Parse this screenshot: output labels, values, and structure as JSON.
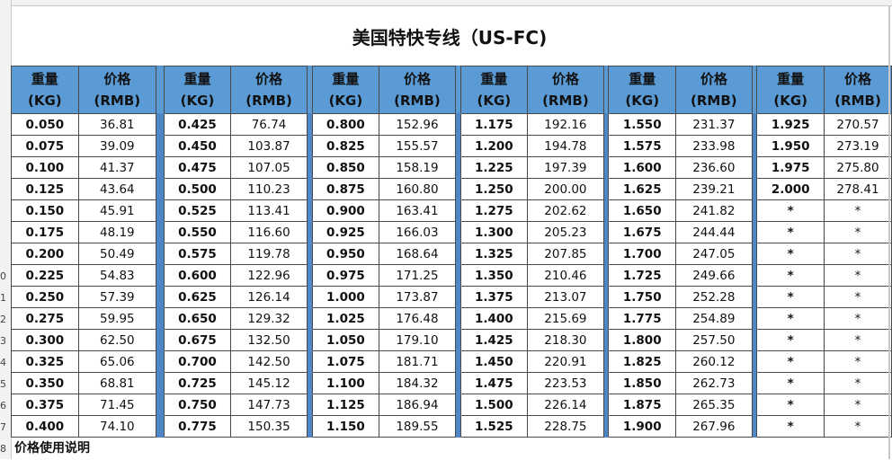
{
  "title": "美国特快专线（US-FC)",
  "header": {
    "weight": "重量\n(KG)",
    "price": "价格\n(RMB)"
  },
  "row_numbers": [
    "0",
    "1",
    "2",
    "3",
    "4",
    "5",
    "6",
    "7",
    "8"
  ],
  "groups": [
    {
      "rows": [
        [
          "0.050",
          "36.81"
        ],
        [
          "0.075",
          "39.09"
        ],
        [
          "0.100",
          "41.37"
        ],
        [
          "0.125",
          "43.64"
        ],
        [
          "0.150",
          "45.91"
        ],
        [
          "0.175",
          "48.19"
        ],
        [
          "0.200",
          "50.49"
        ],
        [
          "0.225",
          "54.83"
        ],
        [
          "0.250",
          "57.39"
        ],
        [
          "0.275",
          "59.95"
        ],
        [
          "0.300",
          "62.50"
        ],
        [
          "0.325",
          "65.06"
        ],
        [
          "0.350",
          "68.81"
        ],
        [
          "0.375",
          "71.45"
        ],
        [
          "0.400",
          "74.10"
        ]
      ]
    },
    {
      "rows": [
        [
          "0.425",
          "76.74"
        ],
        [
          "0.450",
          "103.87"
        ],
        [
          "0.475",
          "107.05"
        ],
        [
          "0.500",
          "110.23"
        ],
        [
          "0.525",
          "113.41"
        ],
        [
          "0.550",
          "116.60"
        ],
        [
          "0.575",
          "119.78"
        ],
        [
          "0.600",
          "122.96"
        ],
        [
          "0.625",
          "126.14"
        ],
        [
          "0.650",
          "129.32"
        ],
        [
          "0.675",
          "132.50"
        ],
        [
          "0.700",
          "142.50"
        ],
        [
          "0.725",
          "145.12"
        ],
        [
          "0.750",
          "147.73"
        ],
        [
          "0.775",
          "150.35"
        ]
      ]
    },
    {
      "rows": [
        [
          "0.800",
          "152.96"
        ],
        [
          "0.825",
          "155.57"
        ],
        [
          "0.850",
          "158.19"
        ],
        [
          "0.875",
          "160.80"
        ],
        [
          "0.900",
          "163.41"
        ],
        [
          "0.925",
          "166.03"
        ],
        [
          "0.950",
          "168.64"
        ],
        [
          "0.975",
          "171.25"
        ],
        [
          "1.000",
          "173.87"
        ],
        [
          "1.025",
          "176.48"
        ],
        [
          "1.050",
          "179.10"
        ],
        [
          "1.075",
          "181.71"
        ],
        [
          "1.100",
          "184.32"
        ],
        [
          "1.125",
          "186.94"
        ],
        [
          "1.150",
          "189.55"
        ]
      ]
    },
    {
      "rows": [
        [
          "1.175",
          "192.16"
        ],
        [
          "1.200",
          "194.78"
        ],
        [
          "1.225",
          "197.39"
        ],
        [
          "1.250",
          "200.00"
        ],
        [
          "1.275",
          "202.62"
        ],
        [
          "1.300",
          "205.23"
        ],
        [
          "1.325",
          "207.85"
        ],
        [
          "1.350",
          "210.46"
        ],
        [
          "1.375",
          "213.07"
        ],
        [
          "1.400",
          "215.69"
        ],
        [
          "1.425",
          "218.30"
        ],
        [
          "1.450",
          "220.91"
        ],
        [
          "1.475",
          "223.53"
        ],
        [
          "1.500",
          "226.14"
        ],
        [
          "1.525",
          "228.75"
        ]
      ]
    },
    {
      "rows": [
        [
          "1.550",
          "231.37"
        ],
        [
          "1.575",
          "233.98"
        ],
        [
          "1.600",
          "236.60"
        ],
        [
          "1.625",
          "239.21"
        ],
        [
          "1.650",
          "241.82"
        ],
        [
          "1.675",
          "244.44"
        ],
        [
          "1.700",
          "247.05"
        ],
        [
          "1.725",
          "249.66"
        ],
        [
          "1.750",
          "252.28"
        ],
        [
          "1.775",
          "254.89"
        ],
        [
          "1.800",
          "257.50"
        ],
        [
          "1.825",
          "260.12"
        ],
        [
          "1.850",
          "262.73"
        ],
        [
          "1.875",
          "265.35"
        ],
        [
          "1.900",
          "267.96"
        ]
      ]
    },
    {
      "rows": [
        [
          "1.925",
          "270.57"
        ],
        [
          "1.950",
          "273.19"
        ],
        [
          "1.975",
          "275.80"
        ],
        [
          "2.000",
          "278.41"
        ],
        [
          "*",
          "*"
        ],
        [
          "*",
          "*"
        ],
        [
          "*",
          "*"
        ],
        [
          "*",
          "*"
        ],
        [
          "*",
          "*"
        ],
        [
          "*",
          "*"
        ],
        [
          "*",
          "*"
        ],
        [
          "*",
          "*"
        ],
        [
          "*",
          "*"
        ],
        [
          "*",
          "*"
        ],
        [
          "*",
          "*"
        ]
      ]
    }
  ],
  "footer_note": "价格使用说明",
  "colors": {
    "header_bg": "#5b9bd5",
    "separator": "#4f86c6"
  }
}
